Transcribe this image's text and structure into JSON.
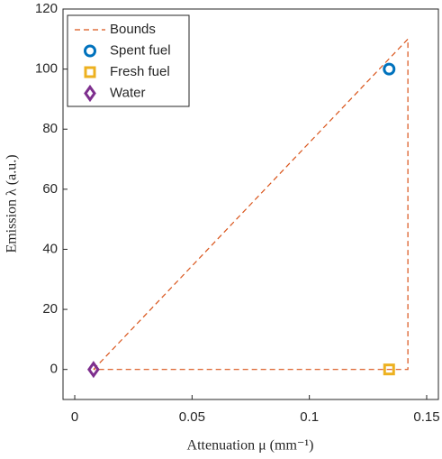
{
  "chart_data": {
    "type": "line",
    "xlabel": "Attenuation μ (mm⁻¹)",
    "ylabel": "Emission λ (a.u.)",
    "xlim": [
      -0.005,
      0.155
    ],
    "xticks": [
      0,
      0.05,
      0.1,
      0.15
    ],
    "ylim": [
      -10,
      120
    ],
    "yticks": [
      0,
      20,
      40,
      60,
      80,
      100,
      120
    ],
    "legend": "upper left",
    "series": [
      {
        "name": "Bounds",
        "color": "#D95319",
        "line": "dashed",
        "x": [
          0.008,
          0.142,
          0.142,
          0.008
        ],
        "values": [
          0,
          110,
          0,
          0
        ]
      },
      {
        "name": "Spent fuel",
        "color": "#0072BD",
        "marker": "circle",
        "x": [
          0.134
        ],
        "values": [
          100
        ]
      },
      {
        "name": "Fresh fuel",
        "color": "#EDB120",
        "marker": "square",
        "x": [
          0.134
        ],
        "values": [
          0
        ]
      },
      {
        "name": "Water",
        "color": "#7E2F8E",
        "marker": "diamond",
        "x": [
          0.008
        ],
        "values": [
          0
        ]
      }
    ]
  }
}
